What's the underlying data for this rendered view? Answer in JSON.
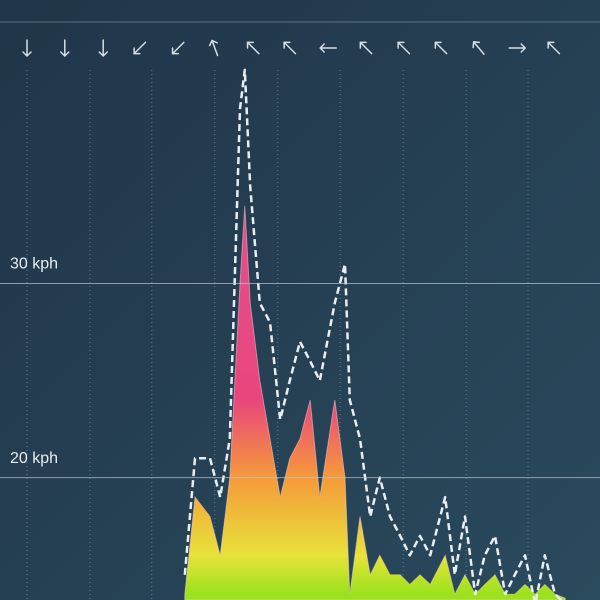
{
  "chart_data": {
    "type": "area",
    "x": [
      30.8,
      32.5,
      35,
      36.7,
      38.3,
      40,
      40.8,
      41.7,
      43.3,
      45,
      46.7,
      48.3,
      50,
      51.7,
      53.3,
      55.8,
      57.5,
      58.3,
      60,
      61.7,
      63.3,
      65,
      66.7,
      68.3,
      70,
      71.7,
      74.2,
      75.8,
      77.5,
      79.2,
      80.8,
      82.5,
      84.2,
      85.8,
      87.5,
      89.2,
      90.8,
      92.5,
      94.2
    ],
    "series": [
      {
        "style": "area",
        "values": [
          14,
          19,
          18,
          16,
          20,
          30,
          34,
          29,
          25,
          22,
          19,
          21,
          22,
          24,
          19,
          24,
          20,
          14,
          18,
          15,
          16,
          15,
          15,
          14.5,
          15,
          14.5,
          16,
          14,
          15,
          14,
          14.5,
          15,
          14,
          14,
          14.5,
          14,
          14.5,
          14,
          13.8
        ]
      },
      {
        "style": "dashed",
        "color": "#e8eef2",
        "values": [
          15,
          21,
          21,
          19,
          22,
          39,
          41,
          35,
          29,
          28,
          23,
          25,
          27,
          26,
          25,
          29,
          31,
          24,
          22,
          18,
          20,
          18,
          17,
          16,
          17,
          16,
          19,
          15,
          18,
          14,
          16,
          17,
          14,
          15,
          16,
          13.5,
          16,
          14,
          13.5
        ]
      }
    ],
    "gradient": [
      {
        "value": 14,
        "color": "#9be21c"
      },
      {
        "value": 16,
        "color": "#e8e23a"
      },
      {
        "value": 20,
        "color": "#f59a3a"
      },
      {
        "value": 24,
        "color": "#e8467c"
      },
      {
        "value": 34,
        "color": "#e0508c"
      }
    ],
    "xlim": [
      0,
      100
    ],
    "xticks": [
      4.5,
      15,
      25.3,
      35.8,
      46.3,
      56.7,
      67.2,
      77.7,
      88
    ],
    "ylim": [
      13.7,
      44.6
    ],
    "yticks": [
      {
        "value": 20,
        "label": "20 kph"
      },
      {
        "value": 30,
        "label": "30 kph"
      }
    ],
    "directions_x": [
      4.5,
      10.8,
      17.2,
      23.3,
      29.7,
      35.8,
      42.2,
      48.3,
      54.7,
      61,
      67.3,
      73.5,
      79.8,
      86.2,
      92.3
    ],
    "directions": [
      180,
      180,
      180,
      225,
      225,
      340,
      315,
      315,
      270,
      315,
      315,
      315,
      320,
      90,
      315
    ],
    "grid": true
  }
}
